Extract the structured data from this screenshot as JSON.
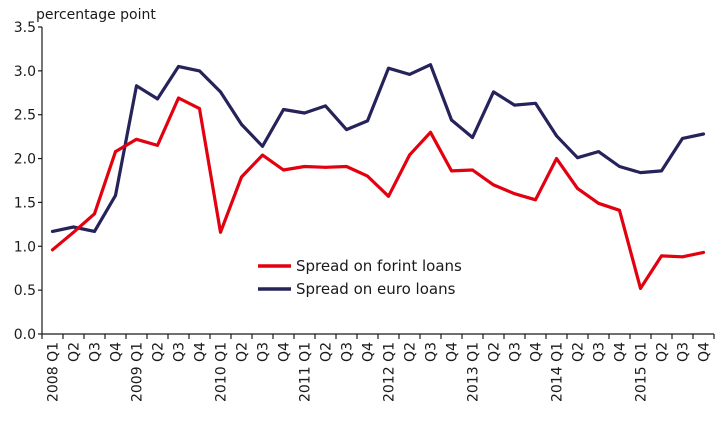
{
  "chart_data": {
    "type": "line",
    "unit_label": "percentage point",
    "x": [
      "2008 Q1",
      "Q2",
      "Q3",
      "Q4",
      "2009 Q1",
      "Q2",
      "Q3",
      "Q4",
      "2010 Q1",
      "Q2",
      "Q3",
      "Q4",
      "2011 Q1",
      "Q2",
      "Q3",
      "Q4",
      "2012 Q1",
      "Q2",
      "Q3",
      "Q4",
      "2013 Q1",
      "Q2",
      "Q3",
      "Q4",
      "2014 Q1",
      "Q2",
      "Q3",
      "Q4",
      "2015 Q1",
      "Q2",
      "Q3",
      "Q4"
    ],
    "ylim": [
      0,
      3.5
    ],
    "yticks": [
      "0.0",
      "0.5",
      "1.0",
      "1.5",
      "2.0",
      "2.5",
      "3.0",
      "3.5"
    ],
    "grid": false,
    "legend_position": "center",
    "series": [
      {
        "name": "Spread on forint loans",
        "color": "#e3000f",
        "values": [
          0.96,
          1.16,
          1.37,
          2.08,
          2.22,
          2.15,
          2.69,
          2.57,
          1.16,
          1.79,
          2.04,
          1.87,
          1.91,
          1.9,
          1.91,
          1.8,
          1.57,
          2.04,
          2.3,
          1.86,
          1.87,
          1.7,
          1.6,
          1.53,
          2.0,
          1.66,
          1.49,
          1.41,
          0.52,
          0.89,
          0.88,
          0.93
        ]
      },
      {
        "name": "Spread on euro loans",
        "color": "#25235a",
        "values": [
          1.17,
          1.22,
          1.17,
          1.58,
          2.83,
          2.68,
          3.05,
          3.0,
          2.76,
          2.39,
          2.14,
          2.56,
          2.52,
          2.6,
          2.33,
          2.43,
          3.03,
          2.96,
          3.07,
          2.44,
          2.24,
          2.76,
          2.61,
          2.63,
          2.26,
          2.01,
          2.08,
          1.91,
          1.84,
          1.86,
          2.23,
          2.28
        ]
      }
    ]
  }
}
